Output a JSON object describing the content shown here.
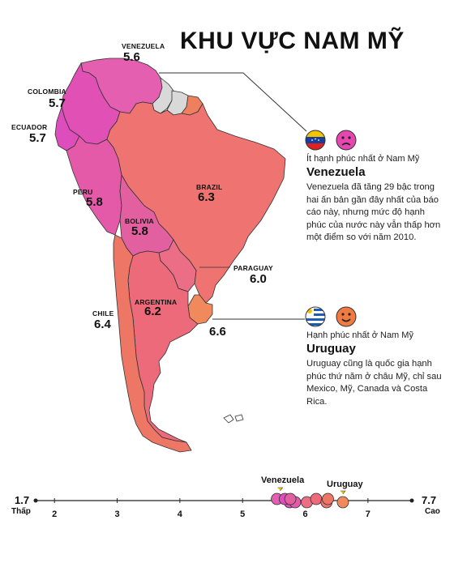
{
  "title": "KHU VỰC NAM MỸ",
  "countries": [
    {
      "id": "venezuela",
      "name": "VENEZUELA",
      "score": "5.6",
      "color": "#e45fb0"
    },
    {
      "id": "colombia",
      "name": "COLOMBIA",
      "score": "5.7",
      "color": "#e050b5"
    },
    {
      "id": "ecuador",
      "name": "ECUADOR",
      "score": "5.7",
      "color": "#dd4dbb"
    },
    {
      "id": "peru",
      "name": "PERU",
      "score": "5.8",
      "color": "#e55aa8"
    },
    {
      "id": "bolivia",
      "name": "BOLIVIA",
      "score": "5.8",
      "color": "#e2609f"
    },
    {
      "id": "brazil",
      "name": "BRAZIL",
      "score": "6.3",
      "color": "#ef7471"
    },
    {
      "id": "paraguay",
      "name": "PARAGUAY",
      "score": "6.0",
      "color": "#ec6e86"
    },
    {
      "id": "argentina",
      "name": "ARGENTINA",
      "score": "6.2",
      "color": "#ec6a7a"
    },
    {
      "id": "chile",
      "name": "CHILE",
      "score": "6.4",
      "color": "#ee7665"
    },
    {
      "id": "uruguay",
      "name": "",
      "score": "6.6",
      "color": "#f08a5c"
    }
  ],
  "no_data_color": "#d9d9d9",
  "guiana_color": "#ee8060",
  "panel_low": {
    "tag": "Ít hạnh phúc nhất ở Nam Mỹ",
    "name": "Venezuela",
    "body": "Venezuela đã tăng 29 bậc trong hai ấn bản gần đây nhất của báo cáo này, nhưng mức độ hạnh phúc của nước này vẫn thấp hơn một điểm so với năm 2010.",
    "face": "sad-face-icon",
    "flag": "venezuela-flag-icon"
  },
  "panel_high": {
    "tag": "Hạnh phúc nhất ở Nam Mỹ",
    "name": "Uruguay",
    "body": "Uruguay cũng là quốc gia hạnh phúc thứ năm ở châu Mỹ, chỉ sau Mexico, Mỹ, Canada và Costa Rica.",
    "face": "smile-face-icon",
    "flag": "uruguay-flag-icon"
  },
  "scale": {
    "min": 1.7,
    "max": 7.7,
    "min_label": "1.7",
    "max_label": "7.7",
    "low_word": "Thấp",
    "high_word": "Cao",
    "ticks": [
      2,
      3,
      4,
      5,
      6,
      7
    ],
    "tick_labels": [
      "2",
      "3",
      "4",
      "5",
      "6",
      "7"
    ],
    "markers": [
      {
        "country": "venezuela",
        "value": 5.6,
        "label": "Venezuela"
      },
      {
        "country": "colombia",
        "value": 5.7
      },
      {
        "country": "ecuador",
        "value": 5.7
      },
      {
        "country": "peru",
        "value": 5.8
      },
      {
        "country": "bolivia",
        "value": 5.8
      },
      {
        "country": "paraguay",
        "value": 6.0
      },
      {
        "country": "argentina",
        "value": 6.2
      },
      {
        "country": "brazil",
        "value": 6.3
      },
      {
        "country": "chile",
        "value": 6.4
      },
      {
        "country": "uruguay",
        "value": 6.6,
        "label": "Uruguay"
      }
    ]
  }
}
